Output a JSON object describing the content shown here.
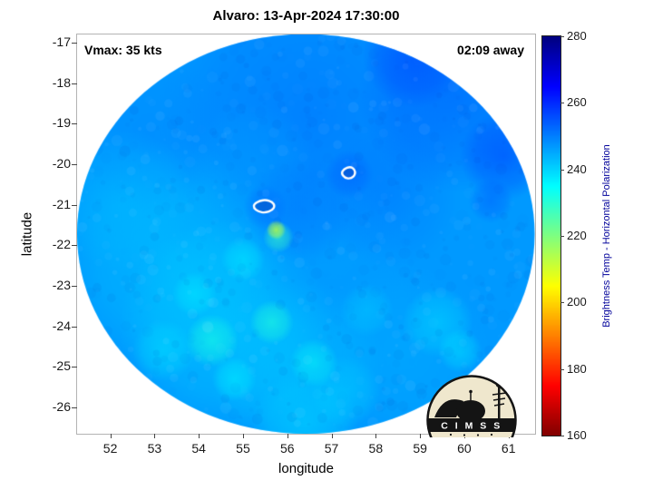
{
  "title": "Alvaro: 13-Apr-2024 17:30:00",
  "annotations": {
    "vmax": "Vmax: 35 kts",
    "eta": "02:09 away"
  },
  "axes": {
    "xlabel": "longitude",
    "ylabel": "latitude",
    "x_ticks": [
      52,
      53,
      54,
      55,
      56,
      57,
      58,
      59,
      60,
      61
    ],
    "y_ticks": [
      -17,
      -18,
      -19,
      -20,
      -21,
      -22,
      -23,
      -24,
      -25,
      -26
    ]
  },
  "colorbar": {
    "label": "Brightness Temp - Horizontal Polarization",
    "ticks": [
      280,
      260,
      240,
      220,
      200,
      180,
      160
    ],
    "min": 160,
    "max": 280
  },
  "logo": {
    "text": "C I M S S"
  },
  "chart_data": {
    "type": "heatmap",
    "title": "Alvaro: 13-Apr-2024 17:30:00",
    "xlabel": "longitude",
    "ylabel": "latitude",
    "xlim": [
      51.25,
      61.6
    ],
    "ylim": [
      -26.65,
      -16.8
    ],
    "storm": {
      "name": "Alvaro",
      "vmax_kts": 35,
      "valid_time": "13-Apr-2024 17:30:00",
      "eta": "02:09 away"
    },
    "colorbar": {
      "label": "Brightness Temp - Horizontal Polarization",
      "min": 160,
      "max": 280,
      "ticks": [
        160,
        180,
        200,
        220,
        240,
        260,
        280
      ],
      "colormap": "jet-reversed"
    },
    "swath": {
      "center_lon": 56.42,
      "center_lat": -21.72,
      "radius_lon_deg": 5.17,
      "radius_lat_deg": 4.93,
      "base_temp_K": 247
    },
    "temp_blobs": [
      {
        "lon": 56.5,
        "lat": -18.8,
        "r": 3.4,
        "T": 252,
        "a": 0.55
      },
      {
        "lon": 59.8,
        "lat": -18.3,
        "r": 2.2,
        "T": 255,
        "a": 0.5
      },
      {
        "lon": 52.9,
        "lat": -19.2,
        "r": 1.8,
        "T": 249,
        "a": 0.5
      },
      {
        "lon": 53.4,
        "lat": -22.3,
        "r": 2.6,
        "T": 241,
        "a": 0.55
      },
      {
        "lon": 52.3,
        "lat": -20.9,
        "r": 1.6,
        "T": 243,
        "a": 0.5
      },
      {
        "lon": 54.6,
        "lat": -24.0,
        "r": 2.4,
        "T": 240,
        "a": 0.55
      },
      {
        "lon": 56.2,
        "lat": -25.0,
        "r": 2.0,
        "T": 241,
        "a": 0.5
      },
      {
        "lon": 58.6,
        "lat": -24.6,
        "r": 2.0,
        "T": 244,
        "a": 0.45
      },
      {
        "lon": 60.2,
        "lat": -22.8,
        "r": 1.6,
        "T": 247,
        "a": 0.4
      },
      {
        "lon": 57.0,
        "lat": -22.2,
        "r": 1.8,
        "T": 246,
        "a": 0.4
      },
      {
        "lon": 55.2,
        "lat": -20.0,
        "r": 1.4,
        "T": 246,
        "a": 0.4
      },
      {
        "lon": 58.3,
        "lat": -20.8,
        "r": 1.6,
        "T": 251,
        "a": 0.4
      },
      {
        "lon": 60.9,
        "lat": -19.8,
        "r": 1.0,
        "T": 258,
        "a": 0.5
      },
      {
        "lon": 58.9,
        "lat": -17.3,
        "r": 1.2,
        "T": 258,
        "a": 0.5
      },
      {
        "lon": 56.3,
        "lat": -21.1,
        "r": 1.2,
        "T": 251,
        "a": 0.45
      },
      {
        "lon": 57.4,
        "lat": -20.25,
        "r": 0.55,
        "T": 254,
        "a": 0.5
      },
      {
        "lon": 55.5,
        "lat": -21.05,
        "r": 0.5,
        "T": 252,
        "a": 0.5
      },
      {
        "lon": 54.3,
        "lat": -24.35,
        "r": 0.6,
        "T": 232,
        "a": 0.6
      },
      {
        "lon": 55.65,
        "lat": -23.9,
        "r": 0.5,
        "T": 231,
        "a": 0.6
      },
      {
        "lon": 53.9,
        "lat": -23.2,
        "r": 0.5,
        "T": 237,
        "a": 0.5
      },
      {
        "lon": 55.0,
        "lat": -22.35,
        "r": 0.5,
        "T": 237,
        "a": 0.5
      },
      {
        "lon": 56.6,
        "lat": -24.9,
        "r": 0.55,
        "T": 234,
        "a": 0.5
      },
      {
        "lon": 54.8,
        "lat": -25.3,
        "r": 0.5,
        "T": 236,
        "a": 0.5
      },
      {
        "lon": 59.4,
        "lat": -23.9,
        "r": 0.8,
        "T": 239,
        "a": 0.5
      },
      {
        "lon": 57.8,
        "lat": -23.6,
        "r": 0.6,
        "T": 240,
        "a": 0.4
      },
      {
        "lon": 55.8,
        "lat": -21.8,
        "r": 0.35,
        "T": 228,
        "a": 0.6
      },
      {
        "lon": 55.75,
        "lat": -21.62,
        "r": 0.22,
        "T": 214,
        "a": 0.85
      },
      {
        "lon": 58.85,
        "lat": -17.05,
        "r": 0.3,
        "T": 232,
        "a": 0.8
      },
      {
        "lon": 60.6,
        "lat": -20.9,
        "r": 0.5,
        "T": 256,
        "a": 0.4
      },
      {
        "lon": 53.2,
        "lat": -24.6,
        "r": 0.7,
        "T": 238,
        "a": 0.45
      },
      {
        "lon": 57.3,
        "lat": -25.6,
        "r": 0.8,
        "T": 240,
        "a": 0.4
      },
      {
        "lon": 59.9,
        "lat": -24.6,
        "r": 0.5,
        "T": 237,
        "a": 0.45
      },
      {
        "lon": 56.4,
        "lat": -26.4,
        "r": 1.2,
        "T": 238,
        "a": 0.4
      }
    ],
    "contours": [
      {
        "name": "west-contour",
        "color": "#ffffff",
        "points": [
          [
            55.25,
            -20.98
          ],
          [
            55.38,
            -20.9
          ],
          [
            55.52,
            -20.88
          ],
          [
            55.66,
            -20.93
          ],
          [
            55.72,
            -21.03
          ],
          [
            55.66,
            -21.14
          ],
          [
            55.5,
            -21.2
          ],
          [
            55.34,
            -21.17
          ],
          [
            55.24,
            -21.08
          ]
        ]
      },
      {
        "name": "east-contour",
        "color": "#ffffff",
        "points": [
          [
            57.28,
            -20.12
          ],
          [
            57.42,
            -20.06
          ],
          [
            57.52,
            -20.12
          ],
          [
            57.54,
            -20.25
          ],
          [
            57.44,
            -20.36
          ],
          [
            57.3,
            -20.34
          ],
          [
            57.22,
            -20.22
          ]
        ]
      }
    ]
  }
}
